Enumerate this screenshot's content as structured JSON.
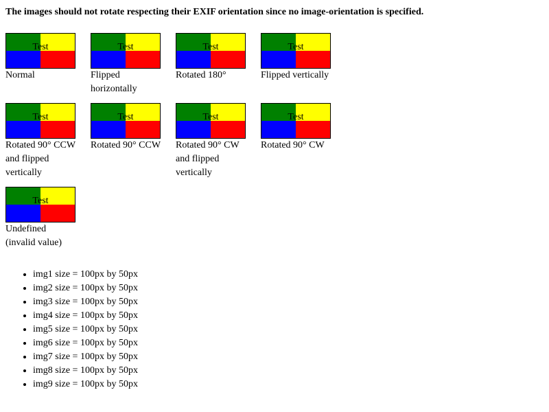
{
  "heading": "The images should not rotate respecting their EXIF orientation since no image-orientation is specified.",
  "colors": {
    "top_left": "#008000",
    "top_right": "#ffff00",
    "bottom_left": "#0000ff",
    "bottom_right": "#ff0000"
  },
  "images": [
    {
      "text": "Test",
      "caption": "Normal"
    },
    {
      "text": "Test",
      "caption": "Flipped horizontally"
    },
    {
      "text": "Test",
      "caption": "Rotated 180°"
    },
    {
      "text": "Test",
      "caption": "Flipped vertically"
    },
    {
      "text": "Test",
      "caption": "Rotated 90° CCW and flipped vertically"
    },
    {
      "text": "Test",
      "caption": "Rotated 90° CCW"
    },
    {
      "text": "Test",
      "caption": "Rotated 90° CW and flipped vertically"
    },
    {
      "text": "Test",
      "caption": "Rotated 90° CW"
    },
    {
      "text": "Test",
      "caption": "Undefined (invalid value)"
    }
  ],
  "sizes": [
    "img1 size = 100px by 50px",
    "img2 size = 100px by 50px",
    "img3 size = 100px by 50px",
    "img4 size = 100px by 50px",
    "img5 size = 100px by 50px",
    "img6 size = 100px by 50px",
    "img7 size = 100px by 50px",
    "img8 size = 100px by 50px",
    "img9 size = 100px by 50px"
  ]
}
